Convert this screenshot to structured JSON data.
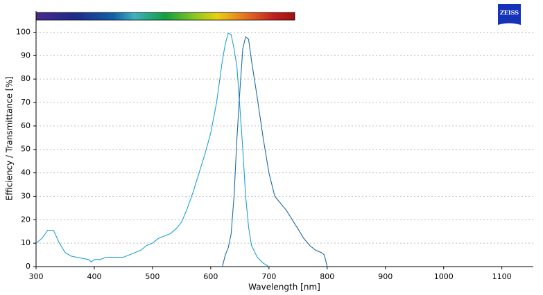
{
  "chart_data": {
    "type": "line",
    "logo_text": "ZEISS",
    "xlabel": "Wavelength [nm]",
    "ylabel": "Efficiency / Transmittance [%]",
    "xlim": [
      300,
      1154
    ],
    "ylim": [
      0,
      109
    ],
    "xticks": [
      300,
      400,
      500,
      600,
      700,
      800,
      900,
      1000,
      1100
    ],
    "yticks": [
      0,
      10,
      20,
      30,
      40,
      50,
      60,
      70,
      80,
      90,
      100
    ],
    "grid": true,
    "series": [
      {
        "color": "#1e9fd6",
        "x": [
          300,
          310,
          320,
          330,
          340,
          350,
          360,
          370,
          380,
          390,
          395,
          400,
          410,
          420,
          430,
          440,
          450,
          460,
          470,
          480,
          490,
          500,
          510,
          520,
          530,
          540,
          550,
          560,
          570,
          580,
          590,
          600,
          610,
          620,
          625,
          630,
          635,
          640,
          645,
          650,
          655,
          660,
          665,
          670,
          680,
          690,
          700
        ],
        "values": [
          10,
          12,
          15.5,
          15.5,
          10,
          6,
          4.5,
          4,
          3.5,
          3,
          2,
          3,
          3,
          4,
          4,
          4,
          4,
          5,
          6,
          7,
          9,
          10,
          12,
          13,
          14,
          16,
          19,
          25,
          32,
          40,
          48,
          57,
          70,
          88,
          95,
          99.5,
          99,
          93,
          85,
          68,
          50,
          30,
          17,
          9,
          4,
          1.5,
          0
        ]
      },
      {
        "color": "#1b6aa6",
        "x": [
          620,
          625,
          630,
          635,
          640,
          645,
          650,
          655,
          660,
          665,
          670,
          680,
          690,
          700,
          710,
          720,
          730,
          740,
          750,
          760,
          770,
          780,
          790,
          795,
          800
        ],
        "values": [
          0,
          5,
          8,
          14,
          30,
          55,
          75,
          93,
          98,
          97,
          88,
          72,
          55,
          40,
          30,
          27,
          24,
          20,
          16,
          12,
          9,
          7,
          6,
          5,
          0
        ]
      }
    ]
  }
}
